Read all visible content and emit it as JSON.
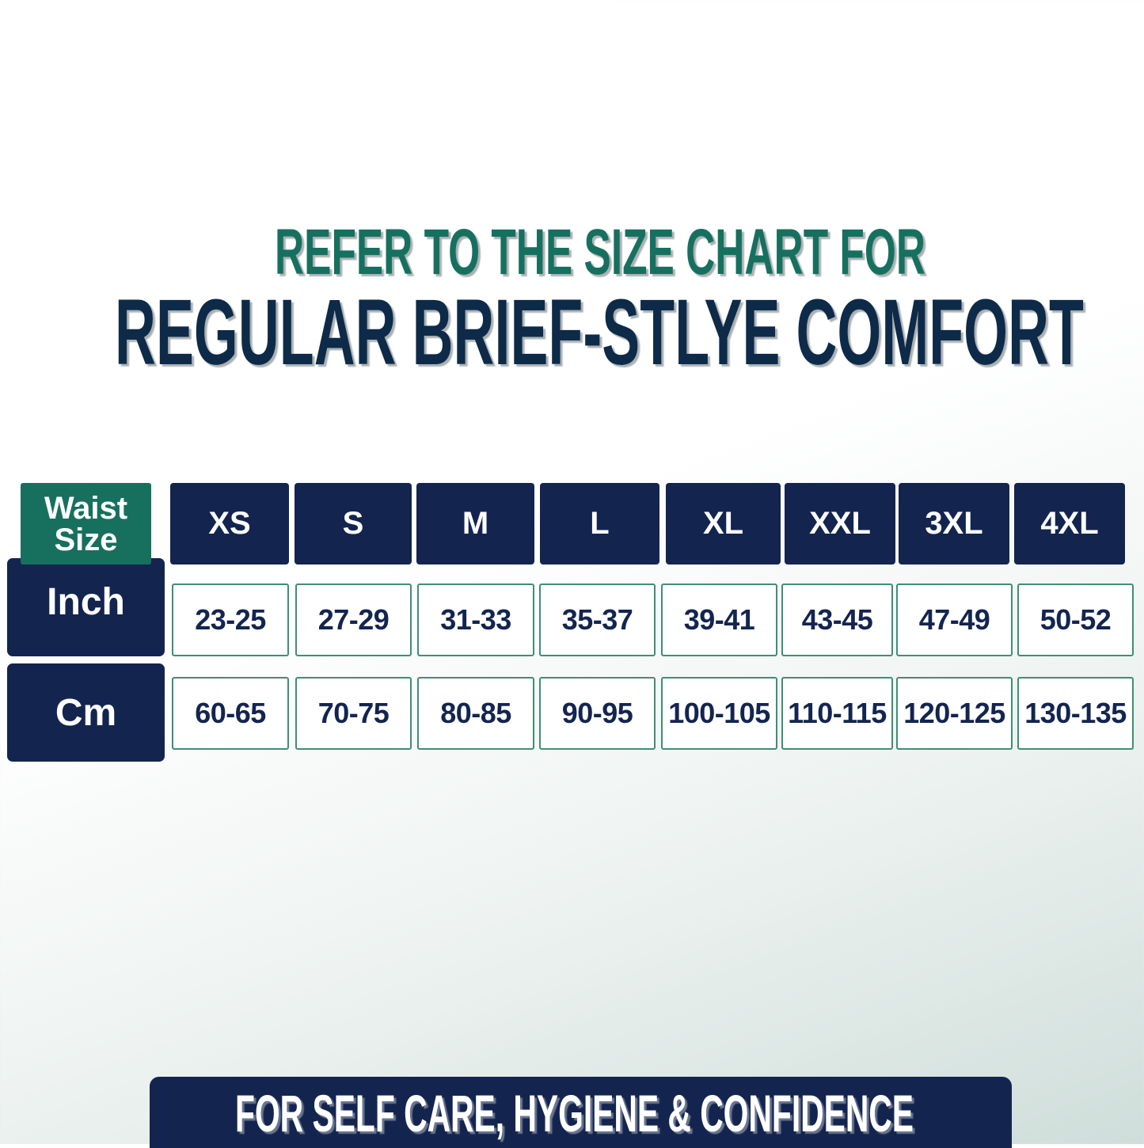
{
  "heading": {
    "line1": "REFER TO THE SIZE CHART FOR",
    "line2": "REGULAR BRIEF-STLYE COMFORT"
  },
  "table": {
    "corner_label_line1": "Waist",
    "corner_label_line2": "Size",
    "sizes": [
      "XS",
      "S",
      "M",
      "L",
      "XL",
      "XXL",
      "3XL",
      "4XL"
    ],
    "rows": [
      {
        "label": "Inch",
        "values": [
          "23-25",
          "27-29",
          "31-33",
          "35-37",
          "39-41",
          "43-45",
          "47-49",
          "50-52"
        ]
      },
      {
        "label": "Cm",
        "values": [
          "60-65",
          "70-75",
          "80-85",
          "90-95",
          "100-105",
          "110-115",
          "120-125",
          "130-135"
        ]
      }
    ]
  },
  "footer": {
    "tagline": "FOR SELF CARE, HYGIENE & CONFIDENCE"
  },
  "colors": {
    "navy": "#13254f",
    "green": "#17705e",
    "heading_navy": "#0d2a4a",
    "cell_border": "#3f8f72"
  }
}
